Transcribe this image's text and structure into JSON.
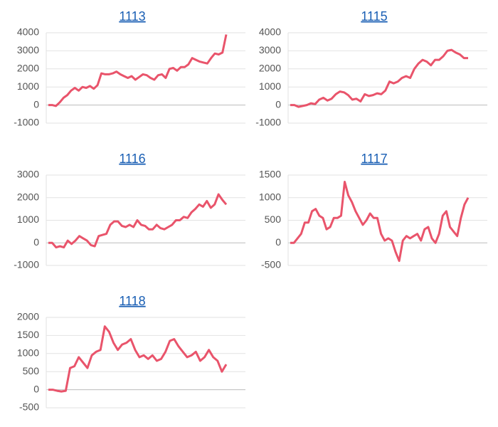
{
  "chart_data": [
    {
      "type": "line",
      "title": "1113",
      "color": "#e9546b",
      "grid": true,
      "ylim": [
        -1000,
        4000
      ],
      "yticks": [
        -1000,
        0,
        1000,
        2000,
        3000,
        4000
      ],
      "values": [
        0,
        0,
        -50,
        150,
        400,
        550,
        800,
        950,
        800,
        1000,
        950,
        1050,
        900,
        1100,
        1750,
        1700,
        1700,
        1750,
        1850,
        1700,
        1600,
        1500,
        1600,
        1400,
        1550,
        1700,
        1650,
        1500,
        1400,
        1650,
        1700,
        1500,
        2000,
        2050,
        1900,
        2100,
        2100,
        2250,
        2600,
        2500,
        2400,
        2350,
        2300,
        2600,
        2850,
        2800,
        2900,
        3900
      ]
    },
    {
      "type": "line",
      "title": "1115",
      "color": "#e9546b",
      "grid": true,
      "ylim": [
        -1000,
        4000
      ],
      "yticks": [
        -1000,
        0,
        1000,
        2000,
        3000,
        4000
      ],
      "values": [
        0,
        0,
        -100,
        -50,
        0,
        100,
        50,
        300,
        400,
        250,
        350,
        600,
        750,
        700,
        550,
        300,
        350,
        200,
        600,
        500,
        550,
        650,
        600,
        800,
        1300,
        1200,
        1300,
        1500,
        1600,
        1500,
        2000,
        2300,
        2500,
        2400,
        2200,
        2500,
        2500,
        2700,
        3000,
        3050,
        2900,
        2800,
        2600,
        2600
      ]
    },
    {
      "type": "line",
      "title": "1116",
      "color": "#e9546b",
      "grid": true,
      "ylim": [
        -1000,
        3000
      ],
      "yticks": [
        -1000,
        0,
        1000,
        2000,
        3000
      ],
      "values": [
        0,
        0,
        -200,
        -150,
        -200,
        100,
        -50,
        100,
        300,
        200,
        100,
        -100,
        -150,
        300,
        350,
        400,
        800,
        950,
        950,
        750,
        700,
        800,
        700,
        1000,
        800,
        750,
        600,
        600,
        800,
        650,
        600,
        700,
        800,
        1000,
        1000,
        1150,
        1100,
        1350,
        1500,
        1700,
        1600,
        1850,
        1550,
        1700,
        2150,
        1900,
        1700
      ]
    },
    {
      "type": "line",
      "title": "1117",
      "color": "#e9546b",
      "grid": true,
      "ylim": [
        -500,
        1500
      ],
      "yticks": [
        -500,
        0,
        500,
        1000,
        1500
      ],
      "values": [
        0,
        0,
        100,
        200,
        450,
        450,
        700,
        750,
        600,
        550,
        300,
        350,
        550,
        550,
        600,
        1350,
        1050,
        900,
        700,
        550,
        400,
        500,
        650,
        550,
        550,
        200,
        50,
        100,
        50,
        -200,
        -400,
        50,
        150,
        100,
        150,
        200,
        50,
        300,
        350,
        100,
        0,
        200,
        600,
        700,
        350,
        250,
        150,
        550,
        850,
        1000
      ]
    },
    {
      "type": "line",
      "title": "1118",
      "color": "#e9546b",
      "grid": true,
      "ylim": [
        -500,
        2000
      ],
      "yticks": [
        -500,
        0,
        500,
        1000,
        1500,
        2000
      ],
      "values": [
        0,
        0,
        -30,
        -50,
        -30,
        600,
        650,
        900,
        750,
        600,
        950,
        1050,
        1100,
        1750,
        1600,
        1300,
        1100,
        1250,
        1300,
        1400,
        1100,
        900,
        950,
        850,
        950,
        800,
        850,
        1050,
        1350,
        1400,
        1200,
        1050,
        900,
        950,
        1050,
        800,
        900,
        1100,
        900,
        800,
        500,
        700
      ]
    }
  ]
}
